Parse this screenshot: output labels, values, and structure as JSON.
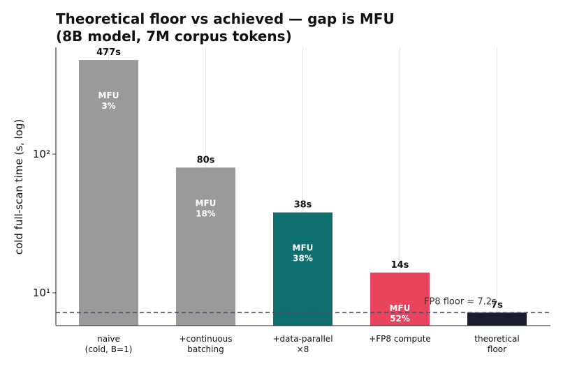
{
  "chart_data": {
    "type": "bar",
    "title": "Theoretical floor vs achieved — gap is MFU",
    "subtitle": "(8B model, 7M corpus tokens)",
    "y_label": "cold full-scan time  (s, log)",
    "categories": [
      "naive\n(cold, B=1)",
      "+continuous\nbatching",
      "+data-parallel\n×8",
      "+FP8 compute",
      "theoretical\nfloor"
    ],
    "values": [
      477,
      80,
      38,
      14,
      7.2
    ],
    "value_labels": [
      "477s",
      "80s",
      "38s",
      "14s",
      "7s"
    ],
    "annotations": [
      "MFU\n3%",
      "MFU\n18%",
      "MFU\n38%",
      "MFU\n52%",
      null
    ],
    "colors": [
      "#9a9a9a",
      "#9a9a9a",
      "#0f6e6e",
      "#e8445e",
      "#1a1d2e"
    ],
    "log_scale": true,
    "ylim": [
      5.8,
      588
    ],
    "yticks": [
      {
        "value": 10,
        "label": "10¹"
      },
      {
        "value": 100,
        "label": "10²"
      }
    ],
    "grid": "x",
    "reference_line": {
      "value": 7.2,
      "label": "FP8 floor ≈ 7.2s",
      "color": "#4a4f63"
    }
  }
}
